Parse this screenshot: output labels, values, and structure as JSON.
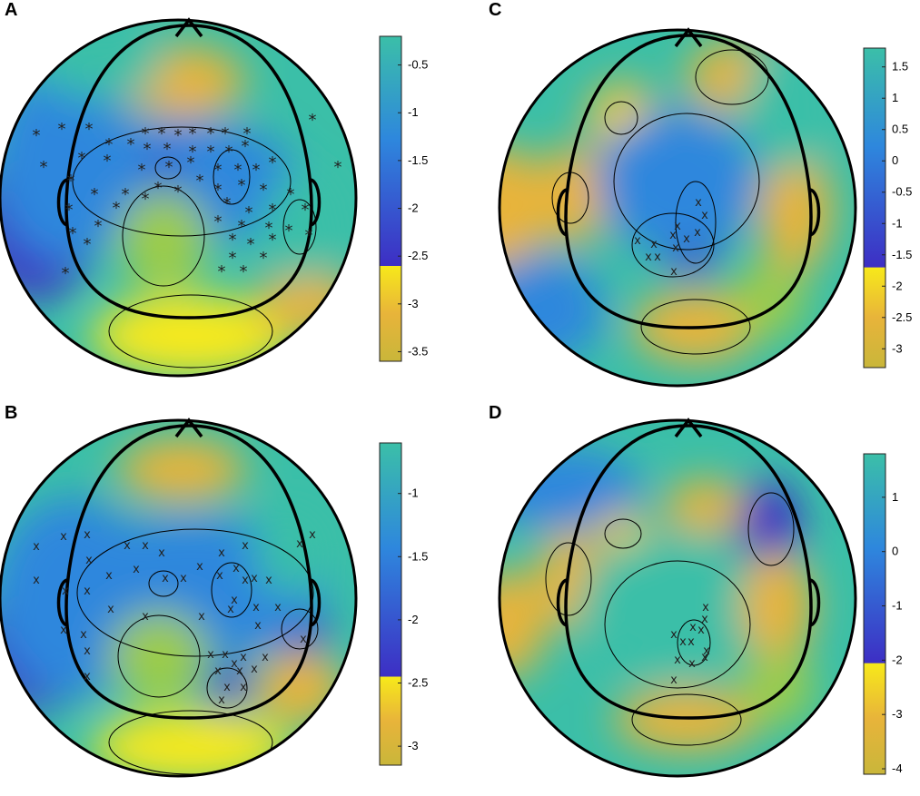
{
  "panels": [
    {
      "letter": "A",
      "marker": "*",
      "colorbar": {
        "ticks": [
          "-0.5",
          "-1",
          "-1.5",
          "-2",
          "-2.5",
          "-3",
          "-3.5"
        ],
        "min": -3.6,
        "max": -0.2,
        "yellow_below": -2.6
      }
    },
    {
      "letter": "C",
      "marker": "x",
      "colorbar": {
        "ticks": [
          "1.5",
          "1",
          "0.5",
          "0",
          "-0.5",
          "-1",
          "-1.5",
          "-2",
          "-2.5",
          "-3"
        ],
        "min": -3.3,
        "max": 1.8,
        "yellow_below": -1.7
      }
    },
    {
      "letter": "B",
      "marker": "x",
      "colorbar": {
        "ticks": [
          "-1",
          "-1.5",
          "-2",
          "-2.5",
          "-3"
        ],
        "min": -3.15,
        "max": -0.6,
        "yellow_below": -2.45
      }
    },
    {
      "letter": "D",
      "marker": "x",
      "colorbar": {
        "ticks": [
          "1",
          "0",
          "-1",
          "-2",
          "-3",
          "-4"
        ],
        "min": -4.1,
        "max": 1.8,
        "yellow_below": -2.05
      }
    }
  ],
  "colors": {
    "teal": "#3bbfa8",
    "blue": "#2e87dd",
    "indigo": "#3d2ec4",
    "yellow": "#f7e91a",
    "orange": "#e8b43a",
    "green": "#9ccc4a"
  }
}
